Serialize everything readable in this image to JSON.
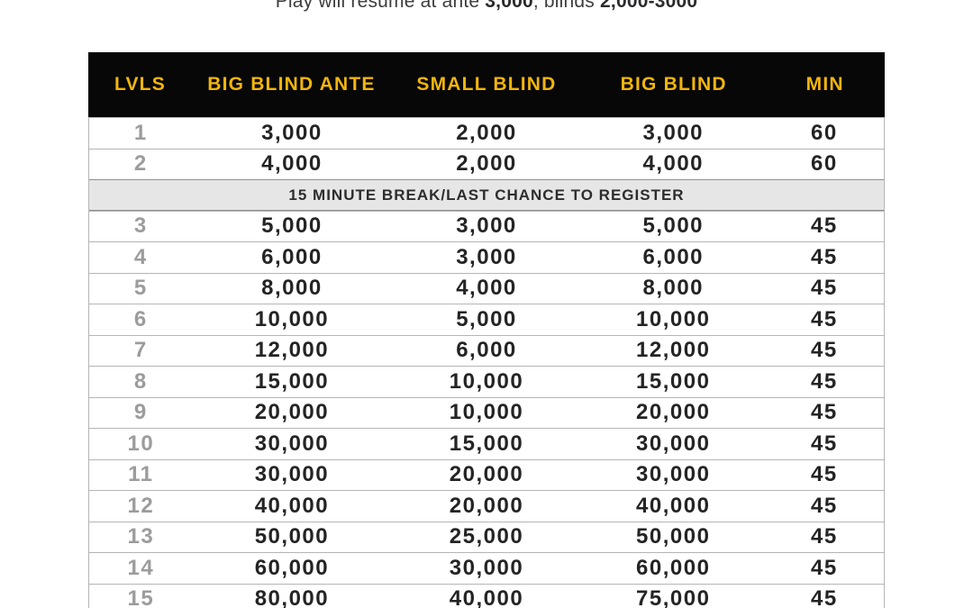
{
  "notice": {
    "prefix": "Play will resume at ante ",
    "ante": "3,000",
    "middle": ", blinds ",
    "blinds": "2,000-3000"
  },
  "table": {
    "headers": [
      "LVLS",
      "BIG BLIND ANTE",
      "SMALL BLIND",
      "BIG BLIND",
      "MIN"
    ],
    "break_row": {
      "after_level": 2,
      "label": "15 MINUTE BREAK/LAST CHANCE TO REGISTER"
    },
    "rows": [
      {
        "lvl": "1",
        "big_blind_ante": "3,000",
        "small_blind": "2,000",
        "big_blind": "3,000",
        "min": "60"
      },
      {
        "lvl": "2",
        "big_blind_ante": "4,000",
        "small_blind": "2,000",
        "big_blind": "4,000",
        "min": "60"
      },
      {
        "lvl": "3",
        "big_blind_ante": "5,000",
        "small_blind": "3,000",
        "big_blind": "5,000",
        "min": "45"
      },
      {
        "lvl": "4",
        "big_blind_ante": "6,000",
        "small_blind": "3,000",
        "big_blind": "6,000",
        "min": "45"
      },
      {
        "lvl": "5",
        "big_blind_ante": "8,000",
        "small_blind": "4,000",
        "big_blind": "8,000",
        "min": "45"
      },
      {
        "lvl": "6",
        "big_blind_ante": "10,000",
        "small_blind": "5,000",
        "big_blind": "10,000",
        "min": "45"
      },
      {
        "lvl": "7",
        "big_blind_ante": "12,000",
        "small_blind": "6,000",
        "big_blind": "12,000",
        "min": "45"
      },
      {
        "lvl": "8",
        "big_blind_ante": "15,000",
        "small_blind": "10,000",
        "big_blind": "15,000",
        "min": "45"
      },
      {
        "lvl": "9",
        "big_blind_ante": "20,000",
        "small_blind": "10,000",
        "big_blind": "20,000",
        "min": "45"
      },
      {
        "lvl": "10",
        "big_blind_ante": "30,000",
        "small_blind": "15,000",
        "big_blind": "30,000",
        "min": "45"
      },
      {
        "lvl": "11",
        "big_blind_ante": "30,000",
        "small_blind": "20,000",
        "big_blind": "30,000",
        "min": "45"
      },
      {
        "lvl": "12",
        "big_blind_ante": "40,000",
        "small_blind": "20,000",
        "big_blind": "40,000",
        "min": "45"
      },
      {
        "lvl": "13",
        "big_blind_ante": "50,000",
        "small_blind": "25,000",
        "big_blind": "50,000",
        "min": "45"
      },
      {
        "lvl": "14",
        "big_blind_ante": "60,000",
        "small_blind": "30,000",
        "big_blind": "60,000",
        "min": "45"
      },
      {
        "lvl": "15",
        "big_blind_ante": "80,000",
        "small_blind": "40,000",
        "big_blind": "75,000",
        "min": "45"
      }
    ]
  },
  "colors": {
    "header_bg": "#070707",
    "header_text": "#f2b50d",
    "level_text": "#9c9c9c",
    "value_text": "#242424",
    "break_bg": "#e6e6e6",
    "row_border": "#b5b5b5",
    "break_border": "#8f8f8f"
  }
}
